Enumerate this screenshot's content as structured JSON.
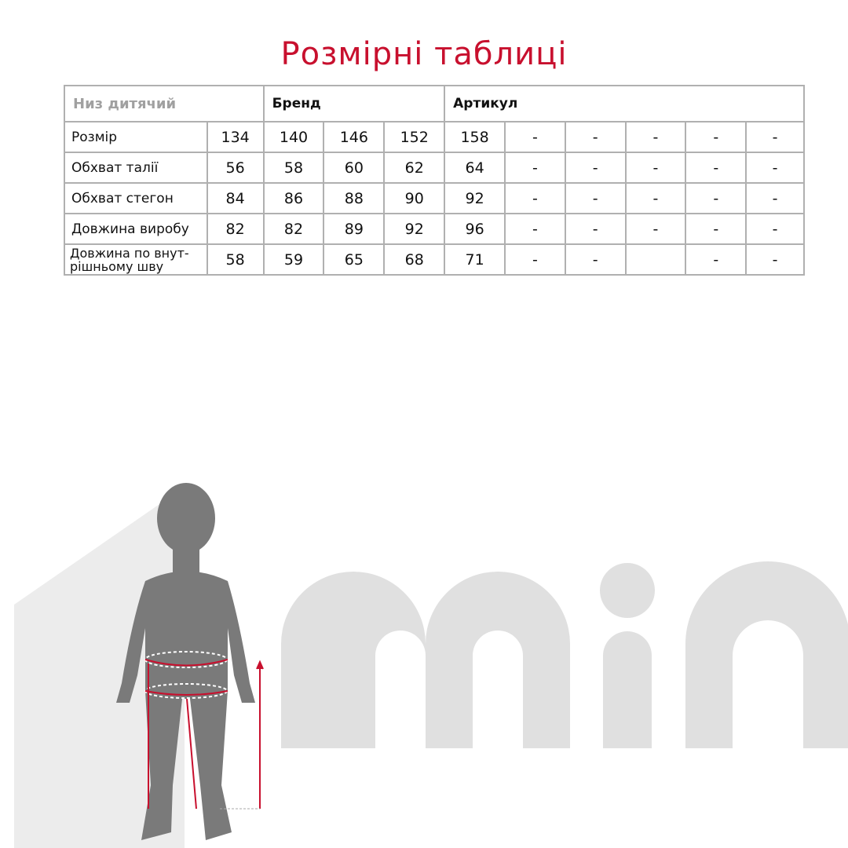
{
  "title": "Розмірні таблиці",
  "table": {
    "category": "Низ дитячий",
    "brand_label": "Бренд",
    "article_label": "Артикул",
    "rows": [
      {
        "label": "Розмір",
        "values": [
          "134",
          "140",
          "146",
          "152",
          "158",
          "-",
          "-",
          "-",
          "-",
          "-"
        ]
      },
      {
        "label": "Обхват талії",
        "values": [
          "56",
          "58",
          "60",
          "62",
          "64",
          "-",
          "-",
          "-",
          "-",
          "-"
        ]
      },
      {
        "label": "Обхват стегон",
        "values": [
          "84",
          "86",
          "88",
          "90",
          "92",
          "-",
          "-",
          "-",
          "-",
          "-"
        ]
      },
      {
        "label": "Довжина виробу",
        "values": [
          "82",
          "82",
          "89",
          "92",
          "96",
          "-",
          "-",
          "-",
          "-",
          "-"
        ]
      },
      {
        "label": "Довжина по внут-рішньому шву",
        "values": [
          "58",
          "59",
          "65",
          "68",
          "71",
          "-",
          "-",
          "",
          "-",
          "-"
        ]
      }
    ]
  },
  "logo_text": "min",
  "colors": {
    "accent": "#c8102e",
    "border": "#b0b0b0",
    "logo": "#e0e0e0",
    "silhouette": "#7a7a7a"
  }
}
